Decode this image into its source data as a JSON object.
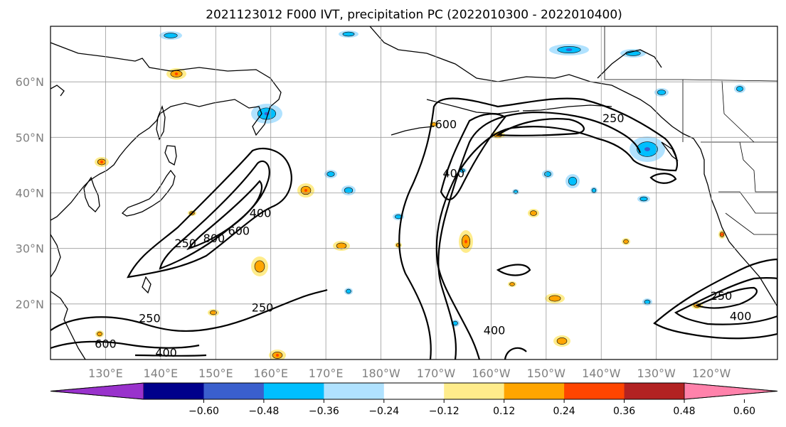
{
  "chart_data": {
    "type": "heatmap",
    "title": "2021123012 F000 IVT, precipitation PC (2022010300 - 2022010400)",
    "x_ticks": [
      "130°E",
      "140°E",
      "150°E",
      "160°E",
      "170°E",
      "180°W",
      "170°W",
      "160°W",
      "150°W",
      "140°W",
      "130°W",
      "120°W"
    ],
    "y_ticks": [
      "20°N",
      "30°N",
      "40°N",
      "50°N",
      "60°N"
    ],
    "xlim": [
      120,
      252
    ],
    "ylim": [
      10,
      70
    ],
    "grid": true,
    "colorbar": {
      "ticks": [
        "−0.60",
        "−0.48",
        "−0.36",
        "−0.24",
        "−0.12",
        "0.12",
        "0.24",
        "0.36",
        "0.48",
        "0.60"
      ],
      "colors": [
        "#9932cc",
        "#00008b",
        "#3a5fcd",
        "#00bfff",
        "#b0e2ff",
        "#ffffff",
        "#ffec8b",
        "#ffa500",
        "#ff4500",
        "#b22222",
        "#ff82ab"
      ],
      "placement": "bottom",
      "extend": "both"
    },
    "contour_labels": [
      {
        "text": "250",
        "lon": 138,
        "lat": 17.3
      },
      {
        "text": "600",
        "lon": 130,
        "lat": 12.7
      },
      {
        "text": "400",
        "lon": 141,
        "lat": 11.1
      },
      {
        "text": "250",
        "lon": 144.5,
        "lat": 30.8
      },
      {
        "text": "800",
        "lon": 149.7,
        "lat": 31.7
      },
      {
        "text": "600",
        "lon": 154.2,
        "lat": 33.0
      },
      {
        "text": "400",
        "lon": 158.1,
        "lat": 36.2
      },
      {
        "text": "250",
        "lon": 158.5,
        "lat": 19.2
      },
      {
        "text": "600",
        "lon": 191.8,
        "lat": 52.2
      },
      {
        "text": "400",
        "lon": 193.2,
        "lat": 43.4
      },
      {
        "text": "250",
        "lon": 222.2,
        "lat": 53.3
      },
      {
        "text": "400",
        "lon": 200.6,
        "lat": 15.1
      },
      {
        "text": "250",
        "lon": 241.8,
        "lat": 21.3
      },
      {
        "text": "400",
        "lon": 245.3,
        "lat": 17.7
      }
    ]
  }
}
